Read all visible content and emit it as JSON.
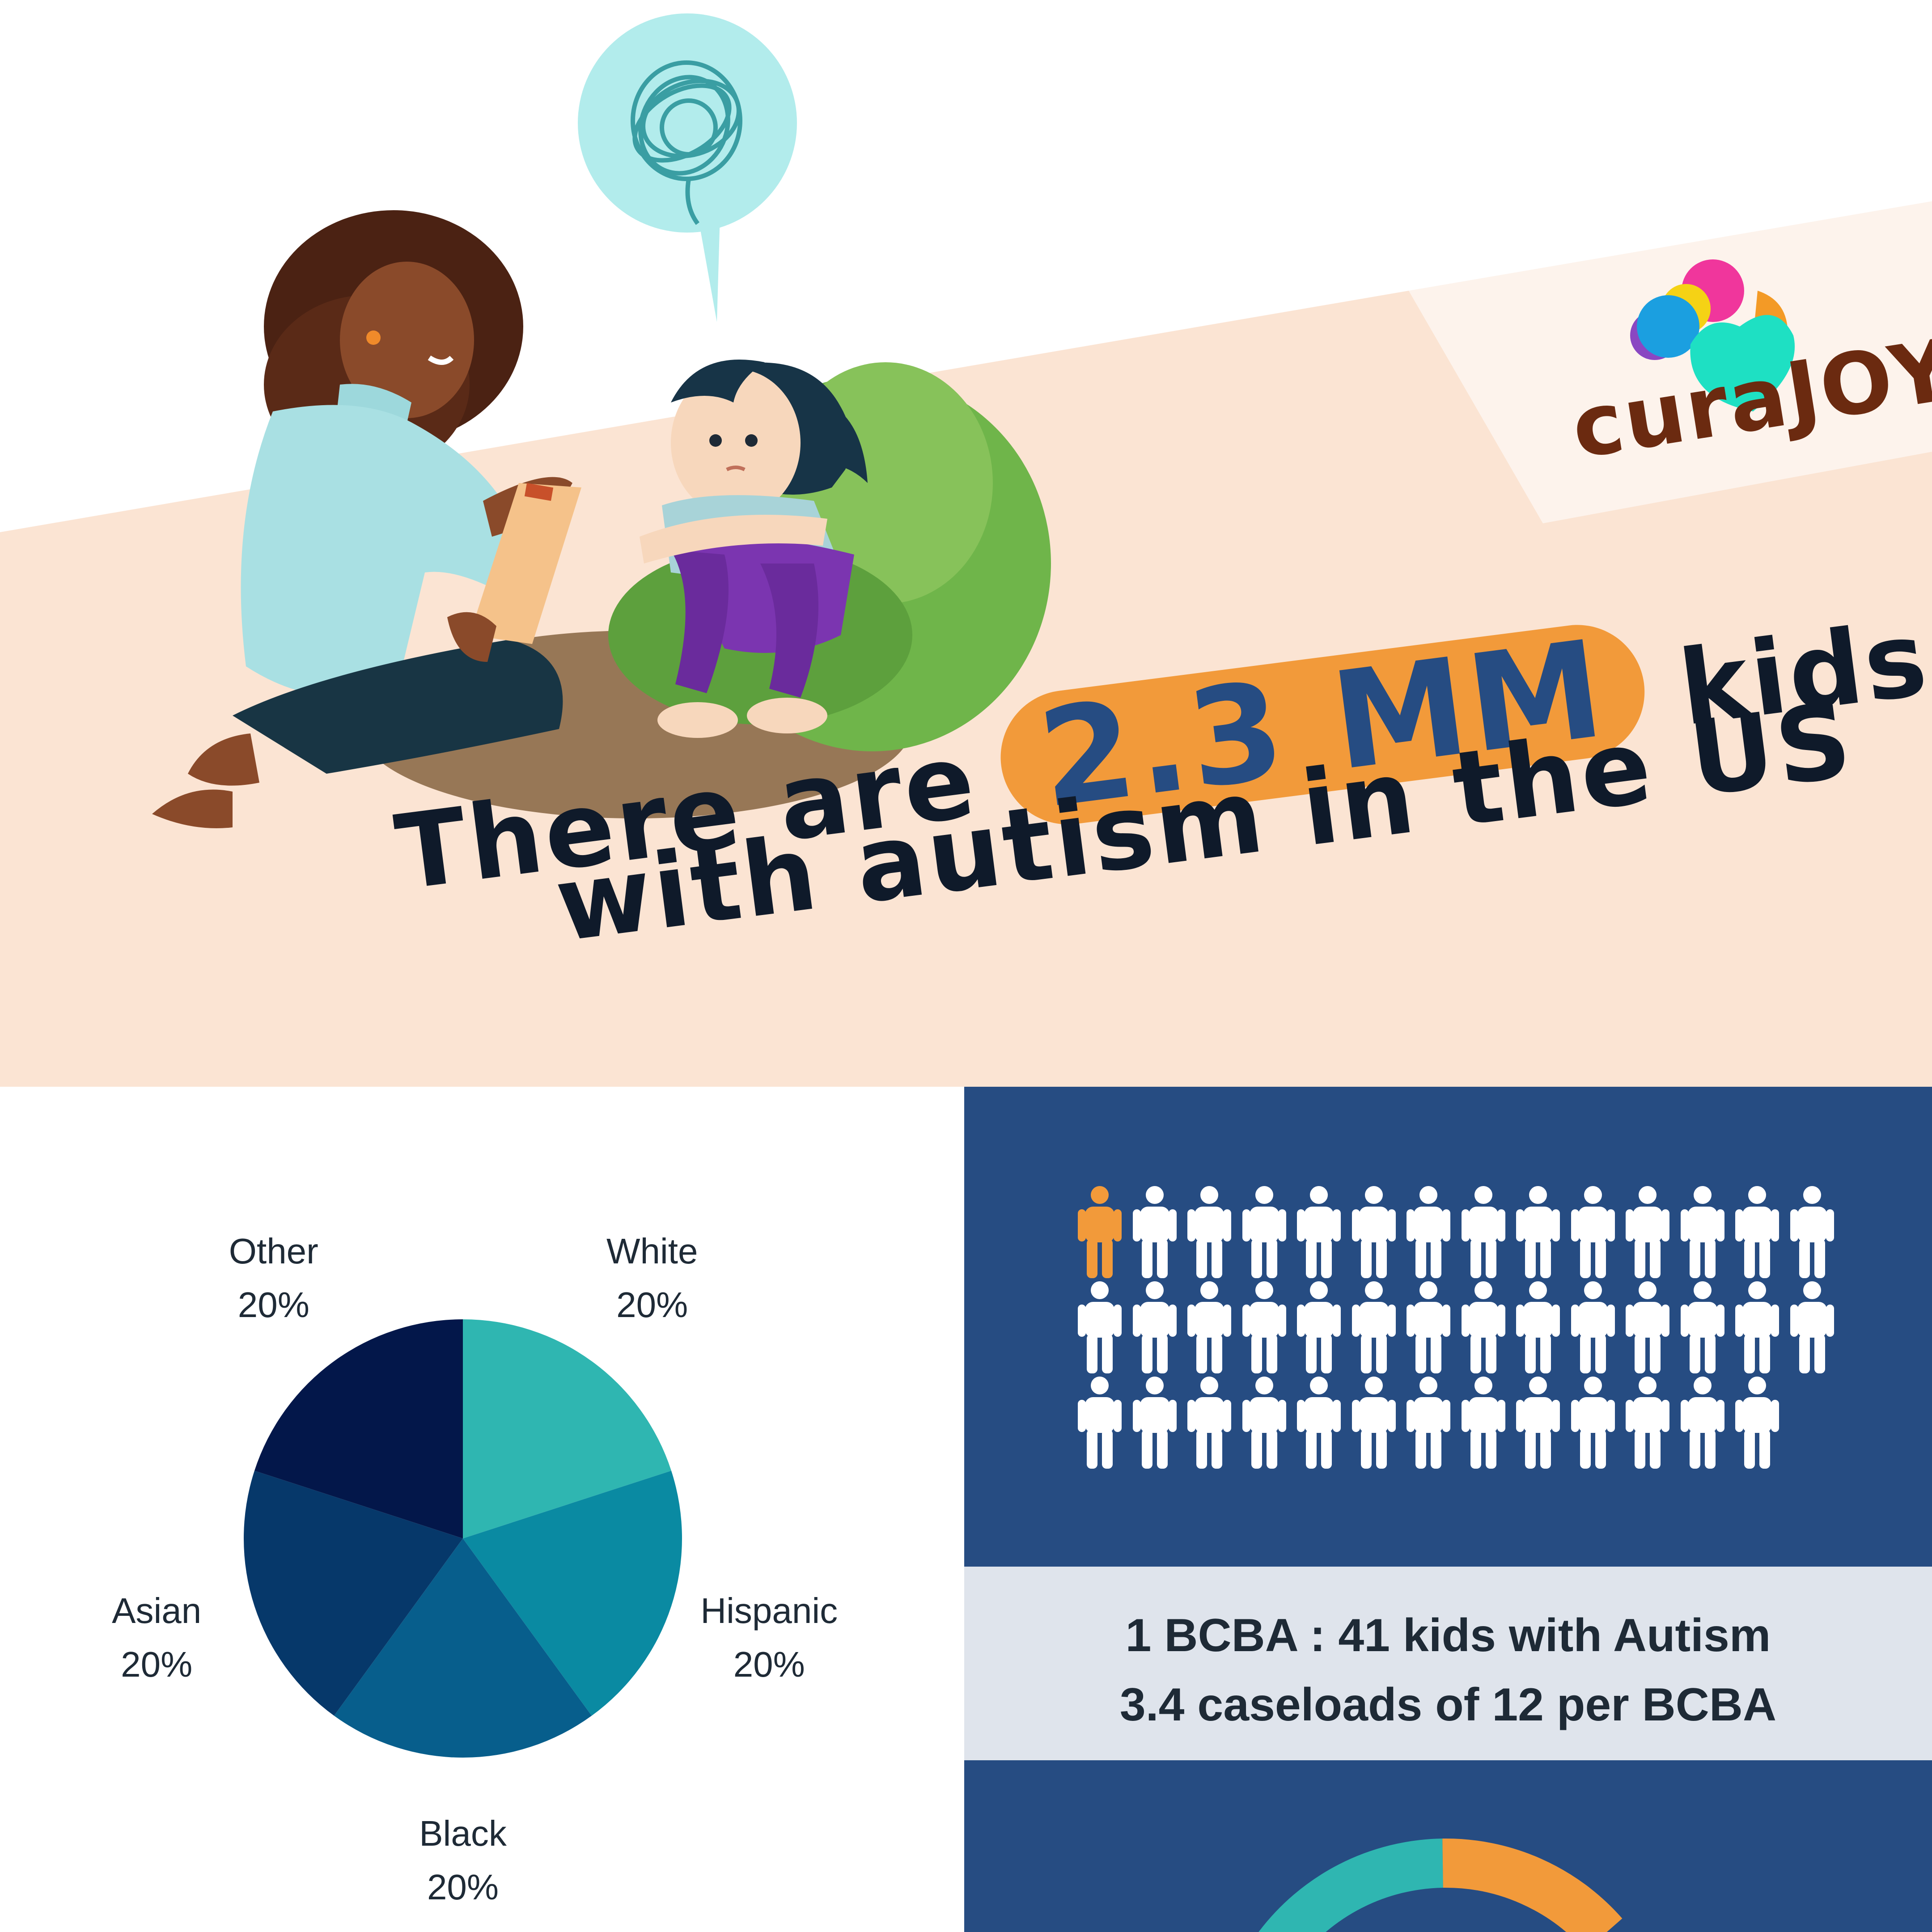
{
  "brand": {
    "name": "curaJOY",
    "logo_icon": "heart-cluster-icon",
    "colors": {
      "text": "#6b2a10",
      "pink": "#f0369c",
      "yellow": "#f5d215",
      "teal": "#1ee0c3",
      "orange": "#f39a26",
      "purple": "#8a47c2",
      "blue": "#1b9fe0"
    }
  },
  "hero": {
    "headline_prefix": "There are",
    "headline_highlight": "2.3 MM",
    "headline_suffix": "kids",
    "headline_line2": "with autism in the US",
    "illustration": "therapist-with-child-on-beanbag",
    "thought_bubble_icon": "scribble-thought-icon",
    "colors": {
      "band": "#fbe4d3",
      "highlight": "#f29a3a",
      "highlight_text": "#264c82",
      "text": "#0f1a2a"
    }
  },
  "chart_data": {
    "type": "pie",
    "slices": [
      {
        "label": "White",
        "value": 20,
        "value_label": "20%",
        "color": "#2fb6b1"
      },
      {
        "label": "Hispanic",
        "value": 20,
        "value_label": "20%",
        "color": "#0a8aa2"
      },
      {
        "label": "Black",
        "value": 20,
        "value_label": "20%",
        "color": "#075e8c"
      },
      {
        "label": "Asian",
        "value": 20,
        "value_label": "20%",
        "color": "#06386a"
      },
      {
        "label": "Other",
        "value": 20,
        "value_label": "20%",
        "color": "#03174a"
      }
    ]
  },
  "ratio": {
    "people_total": 41,
    "people_highlighted": 1,
    "rows": [
      14,
      14,
      13
    ],
    "line1": "1 BCBA : 41 kids with Autism",
    "line2": "3.4 caseloads of 12 per BCBA",
    "colors": {
      "panel": "#264c82",
      "person": "#ffffff",
      "highlight": "#f29a3a",
      "band": "#dfe4ec"
    }
  },
  "progress_ring": {
    "icon": "donut-progress-ring",
    "colors": {
      "track": "#2fb6b1",
      "fill": "#f29a3a"
    }
  }
}
